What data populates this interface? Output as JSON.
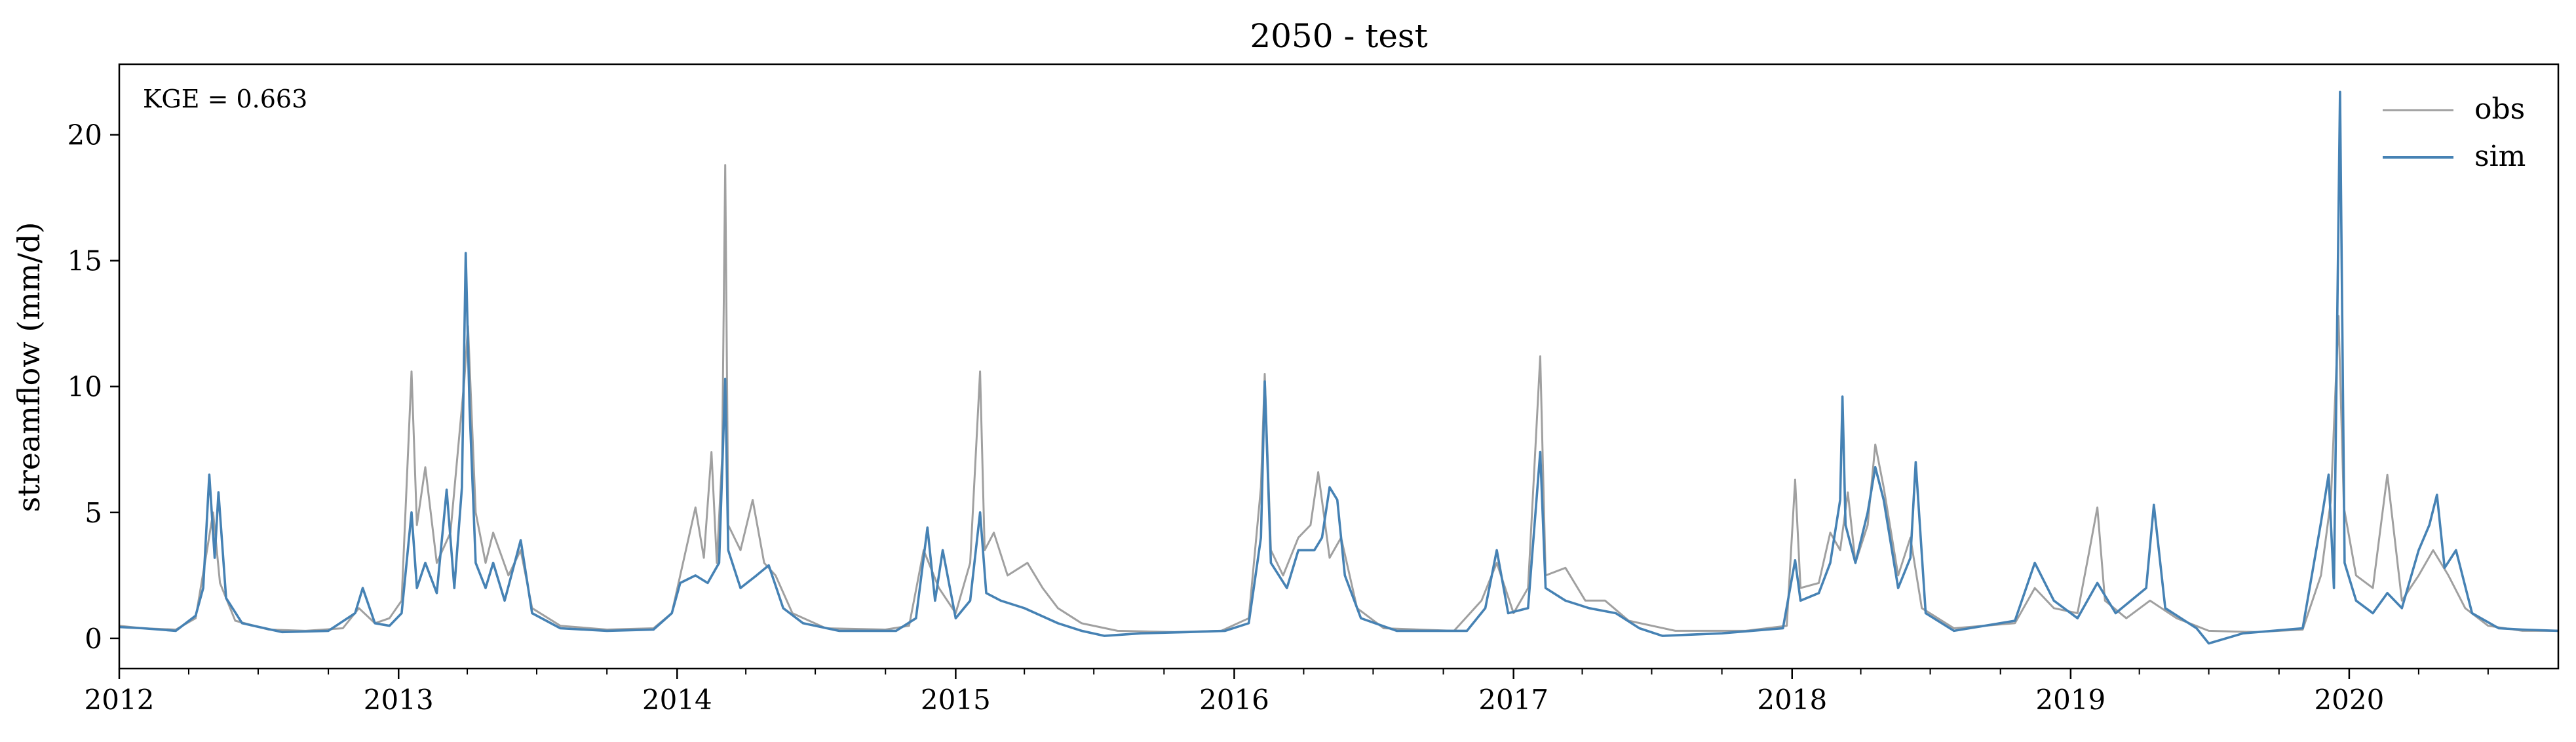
{
  "chart_data": {
    "type": "line",
    "title": "2050 - test",
    "xlabel": "",
    "ylabel": "streamflow (mm/d)",
    "annotation": "KGE = 0.663",
    "xlim": [
      "2012-01-01",
      "2020-10-01"
    ],
    "ylim": [
      -1.2,
      22.8
    ],
    "yticks": [
      0,
      5,
      10,
      15,
      20
    ],
    "ytick_labels": [
      "0",
      "5",
      "10",
      "15",
      "20"
    ],
    "xticks": [
      "2012-01-01",
      "2013-01-01",
      "2014-01-01",
      "2015-01-01",
      "2016-01-01",
      "2017-01-01",
      "2018-01-01",
      "2019-01-01",
      "2020-01-01"
    ],
    "xtick_labels": [
      "2012",
      "2013",
      "2014",
      "2015",
      "2016",
      "2017",
      "2018",
      "2019",
      "2020"
    ],
    "grid": false,
    "legend_position": "top-right",
    "series": [
      {
        "name": "obs",
        "color": "#a0a0a0",
        "points": [
          [
            "2012-01-01",
            0.5
          ],
          [
            "2012-02-01",
            0.4
          ],
          [
            "2012-03-15",
            0.35
          ],
          [
            "2012-04-10",
            0.8
          ],
          [
            "2012-04-25",
            3.5
          ],
          [
            "2012-05-03",
            5.0
          ],
          [
            "2012-05-12",
            2.2
          ],
          [
            "2012-06-01",
            0.7
          ],
          [
            "2012-07-15",
            0.35
          ],
          [
            "2012-09-01",
            0.3
          ],
          [
            "2012-10-20",
            0.4
          ],
          [
            "2012-11-10",
            1.2
          ],
          [
            "2012-12-01",
            0.6
          ],
          [
            "2012-12-20",
            0.8
          ],
          [
            "2013-01-05",
            1.5
          ],
          [
            "2013-01-18",
            10.6
          ],
          [
            "2013-01-25",
            4.5
          ],
          [
            "2013-02-05",
            6.8
          ],
          [
            "2013-02-20",
            3.0
          ],
          [
            "2013-03-10",
            4.2
          ],
          [
            "2013-03-28",
            10.2
          ],
          [
            "2013-04-02",
            12.4
          ],
          [
            "2013-04-12",
            5.0
          ],
          [
            "2013-04-25",
            3.0
          ],
          [
            "2013-05-05",
            4.2
          ],
          [
            "2013-05-25",
            2.5
          ],
          [
            "2013-06-10",
            3.5
          ],
          [
            "2013-06-25",
            1.2
          ],
          [
            "2013-08-01",
            0.5
          ],
          [
            "2013-10-01",
            0.35
          ],
          [
            "2013-12-01",
            0.4
          ],
          [
            "2013-12-25",
            1.0
          ],
          [
            "2014-01-05",
            2.5
          ],
          [
            "2014-01-25",
            5.2
          ],
          [
            "2014-02-05",
            3.2
          ],
          [
            "2014-02-15",
            7.4
          ],
          [
            "2014-02-22",
            3.0
          ],
          [
            "2014-03-01",
            7.2
          ],
          [
            "2014-03-05",
            18.8
          ],
          [
            "2014-03-09",
            4.5
          ],
          [
            "2014-03-25",
            3.5
          ],
          [
            "2014-04-10",
            5.5
          ],
          [
            "2014-04-25",
            3.0
          ],
          [
            "2014-05-10",
            2.5
          ],
          [
            "2014-06-01",
            1.0
          ],
          [
            "2014-07-15",
            0.4
          ],
          [
            "2014-10-01",
            0.35
          ],
          [
            "2014-11-01",
            0.5
          ],
          [
            "2014-11-20",
            3.5
          ],
          [
            "2014-12-10",
            2.0
          ],
          [
            "2015-01-01",
            1.0
          ],
          [
            "2015-01-20",
            3.0
          ],
          [
            "2015-02-02",
            10.6
          ],
          [
            "2015-02-08",
            3.5
          ],
          [
            "2015-02-20",
            4.2
          ],
          [
            "2015-03-10",
            2.5
          ],
          [
            "2015-04-05",
            3.0
          ],
          [
            "2015-04-25",
            2.0
          ],
          [
            "2015-05-15",
            1.2
          ],
          [
            "2015-06-15",
            0.6
          ],
          [
            "2015-08-01",
            0.3
          ],
          [
            "2015-10-15",
            0.25
          ],
          [
            "2015-12-15",
            0.3
          ],
          [
            "2016-01-20",
            0.8
          ],
          [
            "2016-02-05",
            6.0
          ],
          [
            "2016-02-10",
            10.5
          ],
          [
            "2016-02-18",
            3.5
          ],
          [
            "2016-03-05",
            2.5
          ],
          [
            "2016-03-25",
            4.0
          ],
          [
            "2016-04-10",
            4.5
          ],
          [
            "2016-04-20",
            6.6
          ],
          [
            "2016-05-05",
            3.2
          ],
          [
            "2016-05-20",
            4.0
          ],
          [
            "2016-06-10",
            1.2
          ],
          [
            "2016-07-15",
            0.4
          ],
          [
            "2016-10-15",
            0.3
          ],
          [
            "2016-11-20",
            1.5
          ],
          [
            "2016-12-10",
            3.0
          ],
          [
            "2017-01-01",
            1.0
          ],
          [
            "2017-01-20",
            2.0
          ],
          [
            "2017-02-05",
            11.2
          ],
          [
            "2017-02-12",
            2.5
          ],
          [
            "2017-03-10",
            2.8
          ],
          [
            "2017-04-05",
            1.5
          ],
          [
            "2017-05-01",
            1.5
          ],
          [
            "2017-06-01",
            0.7
          ],
          [
            "2017-08-01",
            0.3
          ],
          [
            "2017-11-01",
            0.3
          ],
          [
            "2017-12-25",
            0.5
          ],
          [
            "2018-01-05",
            6.3
          ],
          [
            "2018-01-12",
            2.0
          ],
          [
            "2018-02-05",
            2.2
          ],
          [
            "2018-02-20",
            4.2
          ],
          [
            "2018-03-05",
            3.5
          ],
          [
            "2018-03-15",
            5.8
          ],
          [
            "2018-03-25",
            3.0
          ],
          [
            "2018-04-10",
            4.5
          ],
          [
            "2018-04-20",
            7.7
          ],
          [
            "2018-05-01",
            6.0
          ],
          [
            "2018-05-20",
            2.5
          ],
          [
            "2018-06-05",
            4.0
          ],
          [
            "2018-06-20",
            1.2
          ],
          [
            "2018-08-01",
            0.4
          ],
          [
            "2018-10-20",
            0.6
          ],
          [
            "2018-11-15",
            2.0
          ],
          [
            "2018-12-10",
            1.2
          ],
          [
            "2019-01-10",
            1.0
          ],
          [
            "2019-01-25",
            3.4
          ],
          [
            "2019-02-05",
            5.2
          ],
          [
            "2019-02-15",
            1.5
          ],
          [
            "2019-03-15",
            0.8
          ],
          [
            "2019-04-15",
            1.5
          ],
          [
            "2019-05-20",
            0.8
          ],
          [
            "2019-07-01",
            0.3
          ],
          [
            "2019-09-01",
            0.25
          ],
          [
            "2019-11-01",
            0.35
          ],
          [
            "2019-11-25",
            2.5
          ],
          [
            "2019-12-08",
            5.5
          ],
          [
            "2019-12-18",
            12.8
          ],
          [
            "2019-12-25",
            5.2
          ],
          [
            "2020-01-10",
            2.5
          ],
          [
            "2020-02-01",
            2.0
          ],
          [
            "2020-02-20",
            6.5
          ],
          [
            "2020-03-10",
            1.5
          ],
          [
            "2020-04-01",
            2.5
          ],
          [
            "2020-04-20",
            3.5
          ],
          [
            "2020-05-10",
            2.5
          ],
          [
            "2020-06-01",
            1.2
          ],
          [
            "2020-07-01",
            0.5
          ],
          [
            "2020-08-15",
            0.3
          ],
          [
            "2020-10-01",
            0.3
          ]
        ]
      },
      {
        "name": "sim",
        "color": "#4682b4",
        "points": [
          [
            "2012-01-01",
            0.45
          ],
          [
            "2012-02-01",
            0.4
          ],
          [
            "2012-03-15",
            0.3
          ],
          [
            "2012-04-10",
            0.9
          ],
          [
            "2012-04-20",
            2.0
          ],
          [
            "2012-04-28",
            6.5
          ],
          [
            "2012-05-05",
            3.2
          ],
          [
            "2012-05-10",
            5.8
          ],
          [
            "2012-05-20",
            1.6
          ],
          [
            "2012-06-10",
            0.6
          ],
          [
            "2012-08-01",
            0.25
          ],
          [
            "2012-10-01",
            0.3
          ],
          [
            "2012-11-05",
            1.0
          ],
          [
            "2012-11-15",
            2.0
          ],
          [
            "2012-12-01",
            0.6
          ],
          [
            "2012-12-20",
            0.5
          ],
          [
            "2013-01-05",
            1.0
          ],
          [
            "2013-01-18",
            5.0
          ],
          [
            "2013-01-25",
            2.0
          ],
          [
            "2013-02-05",
            3.0
          ],
          [
            "2013-02-20",
            1.8
          ],
          [
            "2013-03-05",
            5.9
          ],
          [
            "2013-03-15",
            2.0
          ],
          [
            "2013-03-25",
            6.0
          ],
          [
            "2013-03-30",
            15.3
          ],
          [
            "2013-04-04",
            9.2
          ],
          [
            "2013-04-12",
            3.0
          ],
          [
            "2013-04-25",
            2.0
          ],
          [
            "2013-05-05",
            3.0
          ],
          [
            "2013-05-20",
            1.5
          ],
          [
            "2013-06-10",
            3.9
          ],
          [
            "2013-06-25",
            1.0
          ],
          [
            "2013-08-01",
            0.4
          ],
          [
            "2013-10-01",
            0.3
          ],
          [
            "2013-12-01",
            0.35
          ],
          [
            "2013-12-25",
            1.0
          ],
          [
            "2014-01-05",
            2.2
          ],
          [
            "2014-01-25",
            2.5
          ],
          [
            "2014-02-10",
            2.2
          ],
          [
            "2014-02-25",
            3.0
          ],
          [
            "2014-03-05",
            10.3
          ],
          [
            "2014-03-09",
            3.5
          ],
          [
            "2014-03-25",
            2.0
          ],
          [
            "2014-04-15",
            2.5
          ],
          [
            "2014-05-01",
            2.9
          ],
          [
            "2014-05-20",
            1.2
          ],
          [
            "2014-06-15",
            0.6
          ],
          [
            "2014-08-01",
            0.3
          ],
          [
            "2014-10-15",
            0.3
          ],
          [
            "2014-11-10",
            0.8
          ],
          [
            "2014-11-25",
            4.4
          ],
          [
            "2014-12-05",
            1.5
          ],
          [
            "2014-12-15",
            3.5
          ],
          [
            "2015-01-01",
            0.8
          ],
          [
            "2015-01-20",
            1.5
          ],
          [
            "2015-02-02",
            5.0
          ],
          [
            "2015-02-10",
            1.8
          ],
          [
            "2015-03-01",
            1.5
          ],
          [
            "2015-04-01",
            1.2
          ],
          [
            "2015-05-15",
            0.6
          ],
          [
            "2015-06-15",
            0.3
          ],
          [
            "2015-07-15",
            0.1
          ],
          [
            "2015-09-01",
            0.2
          ],
          [
            "2015-11-01",
            0.25
          ],
          [
            "2015-12-20",
            0.3
          ],
          [
            "2016-01-20",
            0.6
          ],
          [
            "2016-02-05",
            4.0
          ],
          [
            "2016-02-10",
            10.2
          ],
          [
            "2016-02-18",
            3.0
          ],
          [
            "2016-03-10",
            2.0
          ],
          [
            "2016-03-25",
            3.5
          ],
          [
            "2016-04-15",
            3.5
          ],
          [
            "2016-04-25",
            4.0
          ],
          [
            "2016-05-05",
            6.0
          ],
          [
            "2016-05-15",
            5.5
          ],
          [
            "2016-05-25",
            2.5
          ],
          [
            "2016-06-15",
            0.8
          ],
          [
            "2016-08-01",
            0.3
          ],
          [
            "2016-11-01",
            0.3
          ],
          [
            "2016-11-25",
            1.2
          ],
          [
            "2016-12-10",
            3.5
          ],
          [
            "2016-12-25",
            1.0
          ],
          [
            "2017-01-20",
            1.2
          ],
          [
            "2017-02-05",
            7.4
          ],
          [
            "2017-02-12",
            2.0
          ],
          [
            "2017-03-10",
            1.5
          ],
          [
            "2017-04-10",
            1.2
          ],
          [
            "2017-05-15",
            1.0
          ],
          [
            "2017-06-15",
            0.4
          ],
          [
            "2017-07-15",
            0.1
          ],
          [
            "2017-10-01",
            0.2
          ],
          [
            "2017-12-20",
            0.4
          ],
          [
            "2018-01-05",
            3.1
          ],
          [
            "2018-01-12",
            1.5
          ],
          [
            "2018-02-05",
            1.8
          ],
          [
            "2018-02-20",
            3.0
          ],
          [
            "2018-03-05",
            5.5
          ],
          [
            "2018-03-08",
            9.6
          ],
          [
            "2018-03-12",
            4.5
          ],
          [
            "2018-03-25",
            3.0
          ],
          [
            "2018-04-10",
            5.0
          ],
          [
            "2018-04-20",
            6.8
          ],
          [
            "2018-05-01",
            5.5
          ],
          [
            "2018-05-20",
            2.0
          ],
          [
            "2018-06-05",
            3.2
          ],
          [
            "2018-06-12",
            7.0
          ],
          [
            "2018-06-25",
            1.0
          ],
          [
            "2018-08-01",
            0.3
          ],
          [
            "2018-10-20",
            0.7
          ],
          [
            "2018-11-15",
            3.0
          ],
          [
            "2018-12-10",
            1.5
          ],
          [
            "2019-01-10",
            0.8
          ],
          [
            "2019-02-05",
            2.2
          ],
          [
            "2019-03-01",
            1.0
          ],
          [
            "2019-04-10",
            2.0
          ],
          [
            "2019-04-20",
            5.3
          ],
          [
            "2019-05-05",
            1.2
          ],
          [
            "2019-06-15",
            0.4
          ],
          [
            "2019-07-01",
            -0.2
          ],
          [
            "2019-08-15",
            0.2
          ],
          [
            "2019-11-01",
            0.4
          ],
          [
            "2019-11-25",
            4.6
          ],
          [
            "2019-12-05",
            6.5
          ],
          [
            "2019-12-12",
            2.0
          ],
          [
            "2019-12-20",
            21.7
          ],
          [
            "2019-12-26",
            3.0
          ],
          [
            "2020-01-10",
            1.5
          ],
          [
            "2020-02-01",
            1.0
          ],
          [
            "2020-02-20",
            1.8
          ],
          [
            "2020-03-10",
            1.2
          ],
          [
            "2020-04-01",
            3.5
          ],
          [
            "2020-04-15",
            4.5
          ],
          [
            "2020-04-25",
            5.7
          ],
          [
            "2020-05-05",
            2.8
          ],
          [
            "2020-05-20",
            3.5
          ],
          [
            "2020-06-10",
            1.0
          ],
          [
            "2020-07-15",
            0.4
          ],
          [
            "2020-08-15",
            0.35
          ],
          [
            "2020-10-01",
            0.3
          ]
        ]
      }
    ]
  }
}
